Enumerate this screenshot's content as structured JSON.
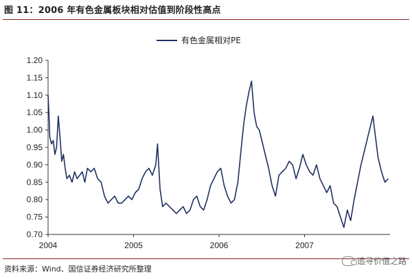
{
  "figure_title": "图 11：2006 年有色金属板块相对估值到阶段性高点",
  "source": "资料来源：Wind、国信证券经济研究所整理",
  "watermark": "追寻价值之路",
  "watermark_icon": "wechat-icon",
  "colors": {
    "line": "#1d2f5e",
    "rule": "#8a1f1f",
    "axis": "#333333"
  },
  "chart_data": {
    "type": "line",
    "title": "",
    "xlabel": "",
    "ylabel": "",
    "ylim": [
      0.7,
      1.2
    ],
    "xlim": [
      2004.0,
      2008.0
    ],
    "yticks": [
      "0.70",
      "0.75",
      "0.80",
      "0.85",
      "0.90",
      "0.95",
      "1.00",
      "1.05",
      "1.10",
      "1.15",
      "1.20"
    ],
    "xticks": [
      "2004",
      "2005",
      "2006",
      "2007"
    ],
    "grid": false,
    "legend_position": "top-center",
    "series": [
      {
        "name": "有色金属相对PE",
        "x": [
          2004.0,
          2004.01,
          2004.02,
          2004.04,
          2004.06,
          2004.08,
          2004.1,
          2004.12,
          2004.14,
          2004.16,
          2004.18,
          2004.2,
          2004.22,
          2004.25,
          2004.28,
          2004.31,
          2004.34,
          2004.37,
          2004.4,
          2004.43,
          2004.46,
          2004.5,
          2004.54,
          2004.58,
          2004.62,
          2004.66,
          2004.7,
          2004.74,
          2004.78,
          2004.82,
          2004.86,
          2004.9,
          2004.94,
          2004.98,
          2005.02,
          2005.06,
          2005.1,
          2005.14,
          2005.18,
          2005.22,
          2005.26,
          2005.28,
          2005.31,
          2005.34,
          2005.38,
          2005.42,
          2005.46,
          2005.5,
          2005.54,
          2005.58,
          2005.62,
          2005.66,
          2005.7,
          2005.74,
          2005.78,
          2005.82,
          2005.86,
          2005.9,
          2005.94,
          2005.98,
          2006.02,
          2006.06,
          2006.1,
          2006.14,
          2006.18,
          2006.22,
          2006.26,
          2006.29,
          2006.32,
          2006.35,
          2006.38,
          2006.41,
          2006.44,
          2006.47,
          2006.5,
          2006.54,
          2006.58,
          2006.62,
          2006.66,
          2006.7,
          2006.74,
          2006.78,
          2006.82,
          2006.86,
          2006.9,
          2006.94,
          2006.98,
          2007.02,
          2007.06,
          2007.1,
          2007.14,
          2007.18,
          2007.22,
          2007.26,
          2007.3,
          2007.34,
          2007.38,
          2007.42,
          2007.46,
          2007.5,
          2007.54,
          2007.58,
          2007.62,
          2007.66,
          2007.7,
          2007.74,
          2007.78,
          2007.8,
          2007.82,
          2007.86,
          2007.9,
          2007.94,
          2007.98
        ],
        "y": [
          1.1,
          1.05,
          0.98,
          0.96,
          0.97,
          0.93,
          0.95,
          1.04,
          0.98,
          0.91,
          0.93,
          0.89,
          0.86,
          0.87,
          0.85,
          0.88,
          0.86,
          0.87,
          0.88,
          0.85,
          0.89,
          0.88,
          0.89,
          0.86,
          0.85,
          0.81,
          0.79,
          0.8,
          0.81,
          0.79,
          0.79,
          0.8,
          0.81,
          0.8,
          0.82,
          0.83,
          0.86,
          0.88,
          0.89,
          0.87,
          0.9,
          0.96,
          0.83,
          0.78,
          0.79,
          0.78,
          0.77,
          0.76,
          0.77,
          0.78,
          0.76,
          0.77,
          0.8,
          0.81,
          0.78,
          0.77,
          0.8,
          0.84,
          0.86,
          0.88,
          0.89,
          0.84,
          0.81,
          0.79,
          0.8,
          0.85,
          0.95,
          1.02,
          1.07,
          1.11,
          1.14,
          1.05,
          1.01,
          1.0,
          0.97,
          0.93,
          0.89,
          0.84,
          0.81,
          0.87,
          0.88,
          0.89,
          0.91,
          0.9,
          0.86,
          0.89,
          0.93,
          0.9,
          0.88,
          0.87,
          0.9,
          0.86,
          0.84,
          0.82,
          0.84,
          0.79,
          0.78,
          0.75,
          0.72,
          0.77,
          0.74,
          0.8,
          0.85,
          0.9,
          0.94,
          0.98,
          1.02,
          1.04,
          1.0,
          0.92,
          0.88,
          0.85,
          0.86
        ]
      }
    ]
  }
}
